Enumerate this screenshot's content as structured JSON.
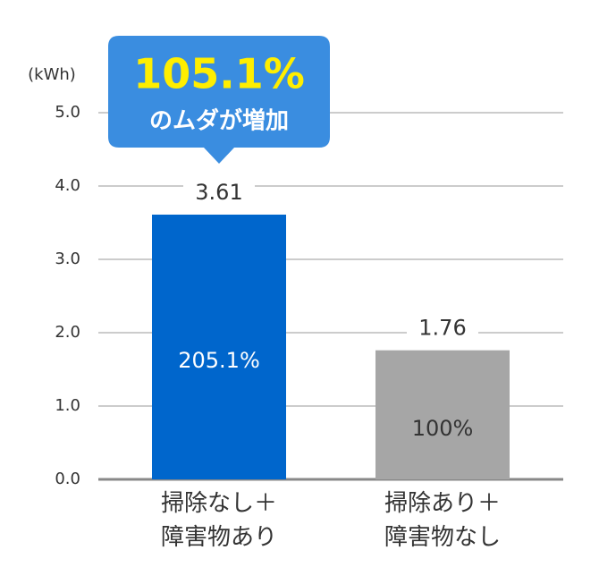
{
  "chart_data": {
    "type": "bar",
    "y_label": "(kWh)",
    "categories": [
      "掃除なし＋\n障害物あり",
      "掃除あり＋\n障害物なし"
    ],
    "values": [
      3.61,
      1.76
    ],
    "percent_labels": [
      "205.1%",
      "100%"
    ],
    "colors": [
      "#0066cc",
      "#a6a6a6"
    ],
    "ylim": [
      0,
      5
    ],
    "yticks": [
      {
        "value": 0,
        "label": "0.0"
      },
      {
        "value": 1,
        "label": "1.0"
      },
      {
        "value": 2,
        "label": "2.0"
      },
      {
        "value": 3,
        "label": "3.0"
      },
      {
        "value": 4,
        "label": "4.0"
      },
      {
        "value": 5,
        "label": "5.0"
      }
    ],
    "grid": true,
    "annotation": {
      "headline": "105.1%",
      "text": "のムダが増加"
    }
  }
}
